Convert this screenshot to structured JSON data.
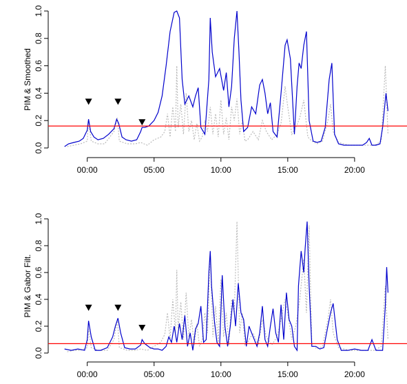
{
  "chart_data": [
    {
      "type": "line",
      "ylabel": "PIM & Smoothed",
      "xlim": [
        -2.2,
        23.2
      ],
      "ylim": [
        0,
        1
      ],
      "y_ticks": [
        0.0,
        0.2,
        0.4,
        0.6,
        0.8,
        1.0
      ],
      "y_tick_labels": [
        "0.0",
        "0.2",
        "0.4",
        "0.6",
        "0.8",
        "1.0"
      ],
      "x_ticks": [
        0,
        5,
        10,
        15,
        20
      ],
      "x_tick_labels": [
        "00:00",
        "05:00",
        "10:00",
        "15:00",
        "20:00"
      ],
      "threshold": {
        "value": 0.16,
        "color": "#ff0000"
      },
      "markers": [
        {
          "x": 0.1,
          "y": 0.34
        },
        {
          "x": 2.3,
          "y": 0.34
        },
        {
          "x": 4.1,
          "y": 0.19
        }
      ],
      "series": [
        {
          "style": "solid",
          "color": "#0000cc",
          "x": [
            -1.7,
            -1.4,
            -1.0,
            -0.6,
            -0.3,
            0.0,
            0.1,
            0.25,
            0.5,
            0.8,
            1.2,
            1.6,
            2.0,
            2.2,
            2.35,
            2.6,
            2.9,
            3.3,
            3.7,
            4.0,
            4.1,
            4.3,
            4.6,
            5.0,
            5.3,
            5.6,
            5.9,
            6.2,
            6.5,
            6.7,
            6.9,
            7.1,
            7.3,
            7.6,
            7.9,
            8.1,
            8.3,
            8.5,
            8.8,
            9.1,
            9.2,
            9.35,
            9.6,
            9.9,
            10.2,
            10.4,
            10.6,
            10.8,
            11.0,
            11.2,
            11.35,
            11.5,
            11.7,
            12.0,
            12.3,
            12.6,
            12.9,
            13.1,
            13.3,
            13.5,
            13.7,
            13.9,
            14.2,
            14.5,
            14.8,
            14.95,
            15.2,
            15.5,
            15.7,
            15.85,
            16.0,
            16.2,
            16.4,
            16.6,
            16.9,
            17.2,
            17.5,
            17.8,
            18.1,
            18.3,
            18.5,
            18.8,
            19.2,
            19.7,
            20.2,
            20.6,
            20.9,
            21.1,
            21.3,
            21.6,
            21.9,
            22.1,
            22.35,
            22.5
          ],
          "y": [
            0.01,
            0.03,
            0.04,
            0.05,
            0.07,
            0.13,
            0.21,
            0.12,
            0.08,
            0.06,
            0.07,
            0.1,
            0.14,
            0.21,
            0.18,
            0.08,
            0.06,
            0.05,
            0.06,
            0.12,
            0.15,
            0.15,
            0.16,
            0.2,
            0.26,
            0.38,
            0.6,
            0.85,
            0.99,
            1.0,
            0.95,
            0.5,
            0.32,
            0.38,
            0.3,
            0.38,
            0.44,
            0.15,
            0.1,
            0.5,
            0.95,
            0.7,
            0.52,
            0.58,
            0.42,
            0.55,
            0.3,
            0.45,
            0.8,
            1.0,
            0.7,
            0.35,
            0.12,
            0.15,
            0.3,
            0.25,
            0.46,
            0.5,
            0.4,
            0.25,
            0.33,
            0.12,
            0.08,
            0.4,
            0.75,
            0.79,
            0.65,
            0.1,
            0.45,
            0.62,
            0.58,
            0.75,
            0.85,
            0.2,
            0.05,
            0.04,
            0.05,
            0.15,
            0.5,
            0.62,
            0.1,
            0.03,
            0.02,
            0.02,
            0.02,
            0.02,
            0.04,
            0.07,
            0.02,
            0.02,
            0.03,
            0.15,
            0.4,
            0.27
          ]
        },
        {
          "style": "dotted",
          "color": "#bbbbbb",
          "x": [
            -1.5,
            -1.0,
            -0.5,
            0.0,
            0.1,
            0.3,
            0.8,
            1.3,
            2.0,
            2.25,
            2.4,
            3.0,
            3.6,
            4.0,
            4.5,
            5.0,
            5.5,
            5.8,
            6.0,
            6.2,
            6.4,
            6.6,
            6.7,
            6.8,
            7.0,
            7.2,
            7.4,
            7.6,
            7.8,
            8.0,
            8.2,
            8.4,
            8.6,
            8.8,
            9.0,
            9.2,
            9.4,
            9.6,
            9.8,
            10.0,
            10.2,
            10.4,
            10.6,
            10.8,
            11.0,
            11.2,
            11.4,
            11.6,
            11.8,
            12.0,
            12.4,
            12.8,
            13.1,
            13.4,
            13.8,
            14.2,
            14.5,
            14.8,
            15.0,
            15.3,
            15.6,
            15.9,
            16.2,
            16.5,
            16.8,
            17.2,
            17.6,
            18.0,
            18.2,
            18.4,
            18.8,
            19.2,
            19.6,
            20.0,
            20.5,
            21.0,
            21.5,
            22.0,
            22.3,
            22.5
          ],
          "y": [
            0.01,
            0.02,
            0.03,
            0.05,
            0.2,
            0.05,
            0.03,
            0.03,
            0.12,
            0.22,
            0.05,
            0.03,
            0.03,
            0.04,
            0.02,
            0.06,
            0.08,
            0.12,
            0.25,
            0.08,
            0.3,
            0.12,
            0.6,
            0.15,
            0.32,
            0.1,
            0.4,
            0.12,
            0.2,
            0.06,
            0.18,
            0.05,
            0.08,
            0.2,
            0.12,
            0.3,
            0.1,
            0.25,
            0.08,
            0.35,
            0.1,
            0.22,
            0.06,
            0.3,
            0.2,
            0.36,
            0.1,
            0.2,
            0.05,
            0.06,
            0.12,
            0.06,
            0.2,
            0.12,
            0.06,
            0.1,
            0.18,
            0.45,
            0.3,
            0.1,
            0.15,
            0.22,
            0.35,
            0.08,
            0.05,
            0.03,
            0.05,
            0.2,
            0.32,
            0.12,
            0.04,
            0.03,
            0.02,
            0.02,
            0.02,
            0.02,
            0.02,
            0.05,
            0.6,
            0.1
          ]
        }
      ]
    },
    {
      "type": "line",
      "ylabel": "PIM & Gabor Filt.",
      "xlim": [
        -2.2,
        23.2
      ],
      "ylim": [
        0,
        1
      ],
      "y_ticks": [
        0.0,
        0.2,
        0.4,
        0.6,
        0.8,
        1.0
      ],
      "y_tick_labels": [
        "0.0",
        "0.2",
        "0.4",
        "0.6",
        "0.8",
        "1.0"
      ],
      "x_ticks": [
        0,
        5,
        10,
        15,
        20
      ],
      "x_tick_labels": [
        "00:00",
        "05:00",
        "10:00",
        "15:00",
        "20:00"
      ],
      "threshold": {
        "value": 0.07,
        "color": "#ff0000"
      },
      "markers": [
        {
          "x": 0.1,
          "y": 0.34
        },
        {
          "x": 2.3,
          "y": 0.34
        },
        {
          "x": 4.1,
          "y": 0.19
        }
      ],
      "series": [
        {
          "style": "solid",
          "color": "#0000cc",
          "x": [
            -1.7,
            -1.2,
            -0.7,
            -0.2,
            0.0,
            0.1,
            0.3,
            0.6,
            1.0,
            1.5,
            1.9,
            2.1,
            2.3,
            2.5,
            2.8,
            3.2,
            3.6,
            4.0,
            4.1,
            4.3,
            4.7,
            5.0,
            5.3,
            5.6,
            5.9,
            6.1,
            6.3,
            6.5,
            6.7,
            6.9,
            7.1,
            7.3,
            7.5,
            7.7,
            7.9,
            8.1,
            8.3,
            8.5,
            8.7,
            8.9,
            9.1,
            9.2,
            9.3,
            9.5,
            9.7,
            9.9,
            10.1,
            10.3,
            10.5,
            10.7,
            10.9,
            11.1,
            11.3,
            11.5,
            11.7,
            11.9,
            12.1,
            12.3,
            12.5,
            12.7,
            12.9,
            13.1,
            13.3,
            13.5,
            13.7,
            13.9,
            14.1,
            14.3,
            14.5,
            14.7,
            14.9,
            15.1,
            15.3,
            15.5,
            15.7,
            15.8,
            16.0,
            16.2,
            16.3,
            16.45,
            16.6,
            16.8,
            17.1,
            17.4,
            17.7,
            18.0,
            18.2,
            18.4,
            18.7,
            19.0,
            19.5,
            20.0,
            20.5,
            21.0,
            21.3,
            21.6,
            21.9,
            22.1,
            22.3,
            22.4,
            22.5
          ],
          "y": [
            0.03,
            0.02,
            0.03,
            0.02,
            0.1,
            0.24,
            0.12,
            0.02,
            0.02,
            0.04,
            0.12,
            0.2,
            0.26,
            0.15,
            0.04,
            0.03,
            0.03,
            0.06,
            0.1,
            0.07,
            0.04,
            0.03,
            0.03,
            0.02,
            0.05,
            0.12,
            0.08,
            0.2,
            0.08,
            0.22,
            0.1,
            0.28,
            0.05,
            0.15,
            0.02,
            0.18,
            0.22,
            0.35,
            0.08,
            0.1,
            0.6,
            0.76,
            0.5,
            0.25,
            0.08,
            0.05,
            0.58,
            0.2,
            0.05,
            0.2,
            0.4,
            0.2,
            0.52,
            0.3,
            0.25,
            0.05,
            0.2,
            0.15,
            0.1,
            0.05,
            0.15,
            0.35,
            0.1,
            0.05,
            0.2,
            0.33,
            0.15,
            0.08,
            0.36,
            0.1,
            0.45,
            0.25,
            0.2,
            0.05,
            0.02,
            0.5,
            0.76,
            0.6,
            0.78,
            0.98,
            0.5,
            0.05,
            0.05,
            0.03,
            0.04,
            0.2,
            0.3,
            0.37,
            0.1,
            0.02,
            0.02,
            0.03,
            0.02,
            0.02,
            0.1,
            0.02,
            0.02,
            0.02,
            0.35,
            0.64,
            0.45
          ]
        },
        {
          "style": "dotted",
          "color": "#bbbbbb",
          "x": [
            -1.5,
            -1.0,
            -0.5,
            0.0,
            0.1,
            0.3,
            0.8,
            1.5,
            2.0,
            2.25,
            2.4,
            3.0,
            3.6,
            4.0,
            4.5,
            5.0,
            5.5,
            5.8,
            6.0,
            6.2,
            6.4,
            6.6,
            6.7,
            6.8,
            7.0,
            7.2,
            7.4,
            7.6,
            7.8,
            8.0,
            8.2,
            8.4,
            8.6,
            8.8,
            9.0,
            9.2,
            9.4,
            9.6,
            9.8,
            10.0,
            10.2,
            10.4,
            10.6,
            10.8,
            11.0,
            11.2,
            11.4,
            11.6,
            11.8,
            12.0,
            12.4,
            12.8,
            13.1,
            13.4,
            13.8,
            14.2,
            14.5,
            14.8,
            15.0,
            15.3,
            15.6,
            15.9,
            16.2,
            16.4,
            16.6,
            16.8,
            17.2,
            17.6,
            18.0,
            18.2,
            18.4,
            18.8,
            19.2,
            19.6,
            20.0,
            20.5,
            21.0,
            21.5,
            22.0,
            22.3,
            22.5
          ],
          "y": [
            0.01,
            0.02,
            0.02,
            0.04,
            0.18,
            0.04,
            0.02,
            0.02,
            0.1,
            0.25,
            0.04,
            0.02,
            0.02,
            0.03,
            0.02,
            0.05,
            0.08,
            0.14,
            0.3,
            0.1,
            0.4,
            0.15,
            0.62,
            0.18,
            0.38,
            0.1,
            0.45,
            0.12,
            0.25,
            0.06,
            0.22,
            0.05,
            0.1,
            0.3,
            0.15,
            0.75,
            0.12,
            0.35,
            0.08,
            0.55,
            0.12,
            0.3,
            0.06,
            0.4,
            0.3,
            0.98,
            0.15,
            0.3,
            0.06,
            0.08,
            0.15,
            0.06,
            0.25,
            0.12,
            0.06,
            0.12,
            0.25,
            0.4,
            0.3,
            0.1,
            0.2,
            0.4,
            0.7,
            0.3,
            0.95,
            0.06,
            0.03,
            0.05,
            0.25,
            0.4,
            0.15,
            0.04,
            0.03,
            0.02,
            0.02,
            0.02,
            0.02,
            0.02,
            0.05,
            0.5,
            0.1
          ]
        }
      ]
    }
  ]
}
